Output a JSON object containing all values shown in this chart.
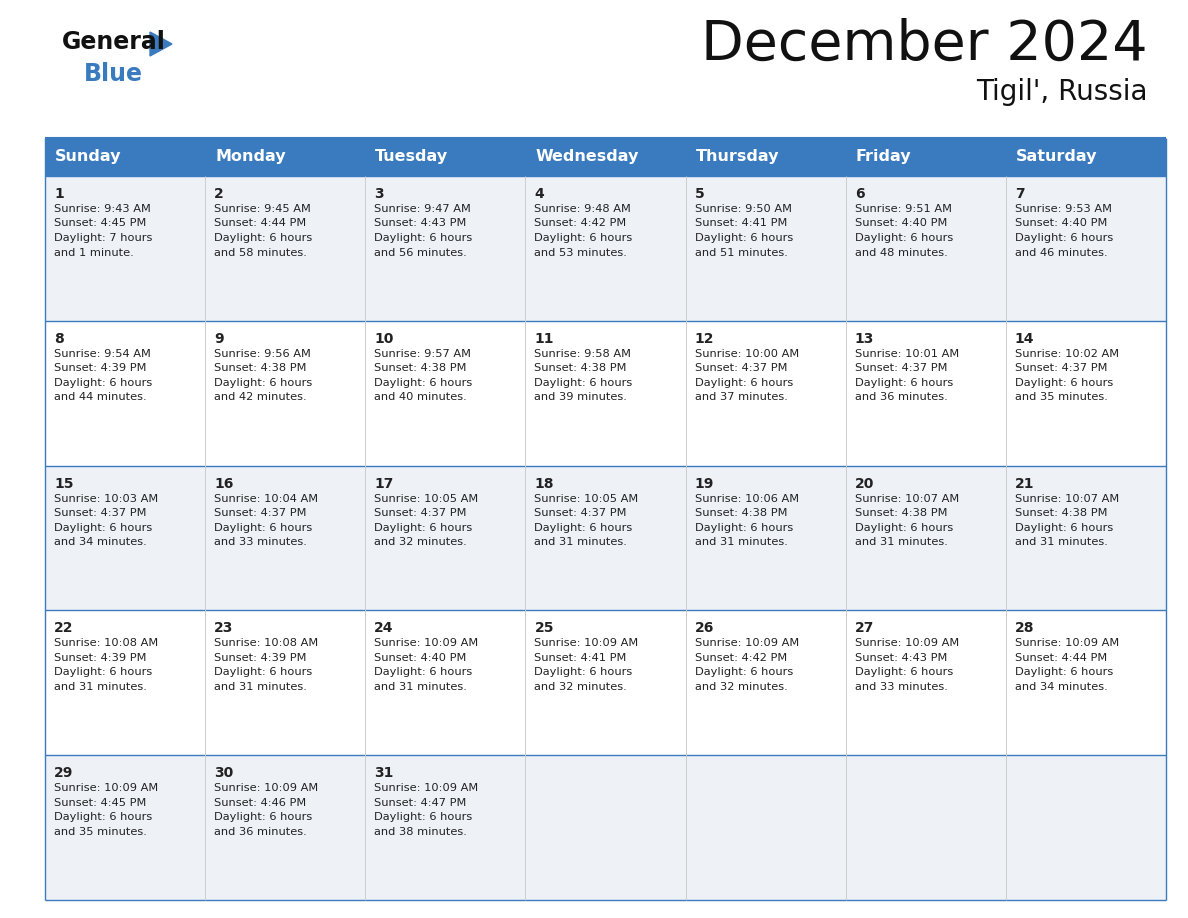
{
  "title": "December 2024",
  "subtitle": "Tigil', Russia",
  "header_color": "#3a7abf",
  "header_text_color": "#ffffff",
  "days_of_week": [
    "Sunday",
    "Monday",
    "Tuesday",
    "Wednesday",
    "Thursday",
    "Friday",
    "Saturday"
  ],
  "bg_color": "#ffffff",
  "cell_bg_even": "#eef2f7",
  "cell_bg_odd": "#ffffff",
  "border_color": "#3a7abf",
  "text_color": "#222222",
  "calendar_data": [
    {
      "day": 1,
      "col": 0,
      "row": 0,
      "sunrise": "9:43 AM",
      "sunset": "4:45 PM",
      "daylight": "7 hours\nand 1 minute."
    },
    {
      "day": 2,
      "col": 1,
      "row": 0,
      "sunrise": "9:45 AM",
      "sunset": "4:44 PM",
      "daylight": "6 hours\nand 58 minutes."
    },
    {
      "day": 3,
      "col": 2,
      "row": 0,
      "sunrise": "9:47 AM",
      "sunset": "4:43 PM",
      "daylight": "6 hours\nand 56 minutes."
    },
    {
      "day": 4,
      "col": 3,
      "row": 0,
      "sunrise": "9:48 AM",
      "sunset": "4:42 PM",
      "daylight": "6 hours\nand 53 minutes."
    },
    {
      "day": 5,
      "col": 4,
      "row": 0,
      "sunrise": "9:50 AM",
      "sunset": "4:41 PM",
      "daylight": "6 hours\nand 51 minutes."
    },
    {
      "day": 6,
      "col": 5,
      "row": 0,
      "sunrise": "9:51 AM",
      "sunset": "4:40 PM",
      "daylight": "6 hours\nand 48 minutes."
    },
    {
      "day": 7,
      "col": 6,
      "row": 0,
      "sunrise": "9:53 AM",
      "sunset": "4:40 PM",
      "daylight": "6 hours\nand 46 minutes."
    },
    {
      "day": 8,
      "col": 0,
      "row": 1,
      "sunrise": "9:54 AM",
      "sunset": "4:39 PM",
      "daylight": "6 hours\nand 44 minutes."
    },
    {
      "day": 9,
      "col": 1,
      "row": 1,
      "sunrise": "9:56 AM",
      "sunset": "4:38 PM",
      "daylight": "6 hours\nand 42 minutes."
    },
    {
      "day": 10,
      "col": 2,
      "row": 1,
      "sunrise": "9:57 AM",
      "sunset": "4:38 PM",
      "daylight": "6 hours\nand 40 minutes."
    },
    {
      "day": 11,
      "col": 3,
      "row": 1,
      "sunrise": "9:58 AM",
      "sunset": "4:38 PM",
      "daylight": "6 hours\nand 39 minutes."
    },
    {
      "day": 12,
      "col": 4,
      "row": 1,
      "sunrise": "10:00 AM",
      "sunset": "4:37 PM",
      "daylight": "6 hours\nand 37 minutes."
    },
    {
      "day": 13,
      "col": 5,
      "row": 1,
      "sunrise": "10:01 AM",
      "sunset": "4:37 PM",
      "daylight": "6 hours\nand 36 minutes."
    },
    {
      "day": 14,
      "col": 6,
      "row": 1,
      "sunrise": "10:02 AM",
      "sunset": "4:37 PM",
      "daylight": "6 hours\nand 35 minutes."
    },
    {
      "day": 15,
      "col": 0,
      "row": 2,
      "sunrise": "10:03 AM",
      "sunset": "4:37 PM",
      "daylight": "6 hours\nand 34 minutes."
    },
    {
      "day": 16,
      "col": 1,
      "row": 2,
      "sunrise": "10:04 AM",
      "sunset": "4:37 PM",
      "daylight": "6 hours\nand 33 minutes."
    },
    {
      "day": 17,
      "col": 2,
      "row": 2,
      "sunrise": "10:05 AM",
      "sunset": "4:37 PM",
      "daylight": "6 hours\nand 32 minutes."
    },
    {
      "day": 18,
      "col": 3,
      "row": 2,
      "sunrise": "10:05 AM",
      "sunset": "4:37 PM",
      "daylight": "6 hours\nand 31 minutes."
    },
    {
      "day": 19,
      "col": 4,
      "row": 2,
      "sunrise": "10:06 AM",
      "sunset": "4:38 PM",
      "daylight": "6 hours\nand 31 minutes."
    },
    {
      "day": 20,
      "col": 5,
      "row": 2,
      "sunrise": "10:07 AM",
      "sunset": "4:38 PM",
      "daylight": "6 hours\nand 31 minutes."
    },
    {
      "day": 21,
      "col": 6,
      "row": 2,
      "sunrise": "10:07 AM",
      "sunset": "4:38 PM",
      "daylight": "6 hours\nand 31 minutes."
    },
    {
      "day": 22,
      "col": 0,
      "row": 3,
      "sunrise": "10:08 AM",
      "sunset": "4:39 PM",
      "daylight": "6 hours\nand 31 minutes."
    },
    {
      "day": 23,
      "col": 1,
      "row": 3,
      "sunrise": "10:08 AM",
      "sunset": "4:39 PM",
      "daylight": "6 hours\nand 31 minutes."
    },
    {
      "day": 24,
      "col": 2,
      "row": 3,
      "sunrise": "10:09 AM",
      "sunset": "4:40 PM",
      "daylight": "6 hours\nand 31 minutes."
    },
    {
      "day": 25,
      "col": 3,
      "row": 3,
      "sunrise": "10:09 AM",
      "sunset": "4:41 PM",
      "daylight": "6 hours\nand 32 minutes."
    },
    {
      "day": 26,
      "col": 4,
      "row": 3,
      "sunrise": "10:09 AM",
      "sunset": "4:42 PM",
      "daylight": "6 hours\nand 32 minutes."
    },
    {
      "day": 27,
      "col": 5,
      "row": 3,
      "sunrise": "10:09 AM",
      "sunset": "4:43 PM",
      "daylight": "6 hours\nand 33 minutes."
    },
    {
      "day": 28,
      "col": 6,
      "row": 3,
      "sunrise": "10:09 AM",
      "sunset": "4:44 PM",
      "daylight": "6 hours\nand 34 minutes."
    },
    {
      "day": 29,
      "col": 0,
      "row": 4,
      "sunrise": "10:09 AM",
      "sunset": "4:45 PM",
      "daylight": "6 hours\nand 35 minutes."
    },
    {
      "day": 30,
      "col": 1,
      "row": 4,
      "sunrise": "10:09 AM",
      "sunset": "4:46 PM",
      "daylight": "6 hours\nand 36 minutes."
    },
    {
      "day": 31,
      "col": 2,
      "row": 4,
      "sunrise": "10:09 AM",
      "sunset": "4:47 PM",
      "daylight": "6 hours\nand 38 minutes."
    }
  ]
}
